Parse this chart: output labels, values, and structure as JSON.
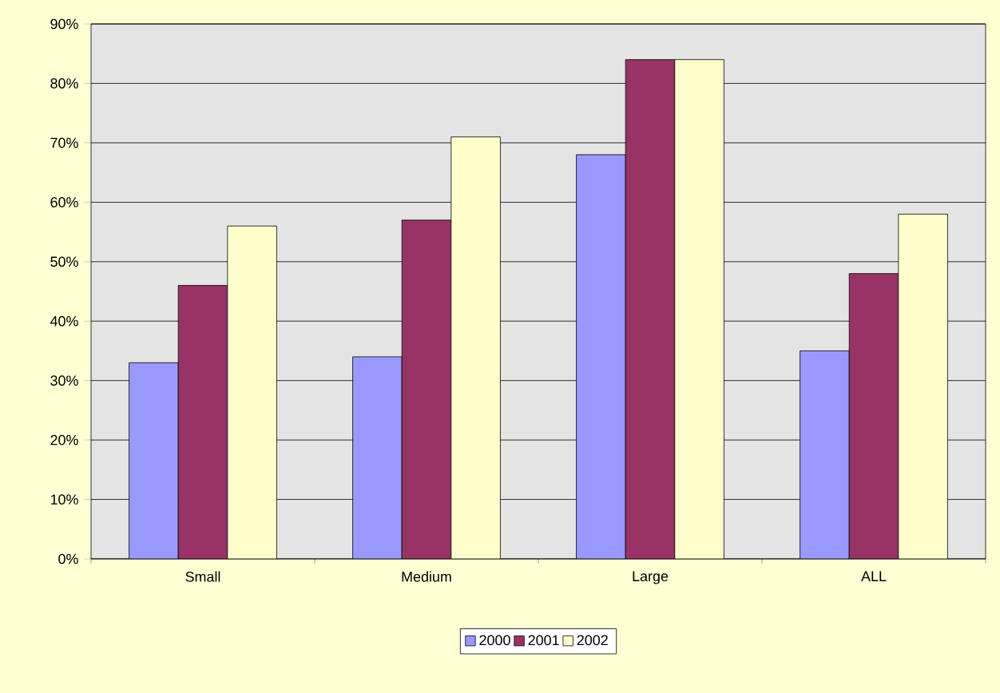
{
  "chart_data": {
    "type": "bar",
    "categories": [
      "Small",
      "Medium",
      "Large",
      "ALL"
    ],
    "series": [
      {
        "name": "2000",
        "color": "#9999ff",
        "values": [
          33,
          34,
          68,
          35
        ]
      },
      {
        "name": "2001",
        "color": "#993366",
        "values": [
          46,
          57,
          84,
          48
        ]
      },
      {
        "name": "2002",
        "color": "#ffffcc",
        "values": [
          56,
          71,
          84,
          58
        ]
      }
    ],
    "ylim": [
      0,
      90
    ],
    "yticks": [
      {
        "value": 0,
        "label": "0%"
      },
      {
        "value": 10,
        "label": "10%"
      },
      {
        "value": 20,
        "label": "20%"
      },
      {
        "value": 30,
        "label": "30%"
      },
      {
        "value": 40,
        "label": "40%"
      },
      {
        "value": 50,
        "label": "50%"
      },
      {
        "value": 60,
        "label": "60%"
      },
      {
        "value": 70,
        "label": "70%"
      },
      {
        "value": 80,
        "label": "80%"
      },
      {
        "value": 90,
        "label": "90%"
      }
    ],
    "grid": "y",
    "legend": "bottom"
  }
}
